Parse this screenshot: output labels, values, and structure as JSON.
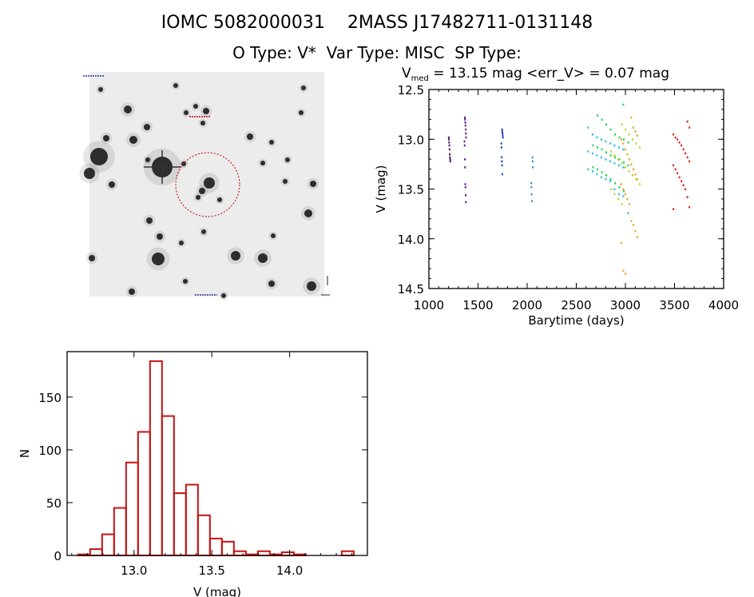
{
  "header": {
    "title_line1": "IOMC 5082000031    2MASS J17482711-0131148",
    "title_line2": "O Type: V*  Var Type: MISC  SP Type:"
  },
  "finder_chart": {
    "circle_color": "#cc0000"
  },
  "chart_data": [
    {
      "type": "scatter",
      "title_main": "V",
      "title_sub": "med",
      "title_rest": " = 13.15 mag <err_V> = 0.07 mag",
      "xlabel": "Barytime (days)",
      "ylabel": "V (mag)",
      "xlim": [
        1000,
        4000
      ],
      "ylim": [
        14.5,
        12.5
      ],
      "y_inverted": true,
      "xticks": [
        "1000",
        "1500",
        "2000",
        "2500",
        "3000",
        "3500",
        "4000"
      ],
      "yticks": [
        "12.5",
        "13.0",
        "13.5",
        "14.0",
        "14.5"
      ],
      "clusters": [
        {
          "x": 1210,
          "color": "#4a1060",
          "y": [
            12.98,
            13.0,
            13.03,
            13.06,
            13.1,
            13.15,
            13.18,
            13.2,
            13.22
          ]
        },
        {
          "x": 1370,
          "color": "#5a1a8a",
          "y": [
            12.78,
            12.8,
            12.83,
            12.86,
            12.9,
            12.94,
            12.98,
            13.02,
            13.06,
            13.2,
            13.28,
            13.45,
            13.48,
            13.56,
            13.63
          ]
        },
        {
          "x": 1745,
          "color": "#2040c0",
          "y": [
            12.9,
            12.92,
            12.94,
            12.96,
            12.98,
            13.04,
            13.08,
            13.18,
            13.22,
            13.26,
            13.35
          ]
        },
        {
          "x": 2050,
          "color": "#2a8fd0",
          "y": [
            13.18,
            13.22,
            13.28,
            13.44,
            13.48,
            13.55,
            13.62
          ]
        },
        {
          "x": 2800,
          "color": "#20b8e8",
          "spread": 22,
          "y": [
            12.65,
            12.88,
            12.95,
            12.98,
            13.0,
            13.02,
            13.04,
            13.06,
            13.08,
            13.1,
            13.12,
            13.14,
            13.16,
            13.18,
            13.2,
            13.22,
            13.24,
            13.26,
            13.28,
            13.3,
            13.32,
            13.35,
            13.38,
            13.4,
            13.42,
            13.5,
            13.55,
            13.57
          ]
        },
        {
          "x": 2850,
          "color": "#20d050",
          "spread": 22,
          "y": [
            12.76,
            12.8,
            12.85,
            12.9,
            12.95,
            12.98,
            13.0,
            13.03,
            13.06,
            13.08,
            13.1,
            13.13,
            13.16,
            13.18,
            13.2,
            13.23,
            13.26,
            13.28,
            13.3,
            13.33,
            13.36,
            13.4,
            13.44,
            13.48,
            13.52,
            13.74
          ]
        },
        {
          "x": 3000,
          "color": "#b0d820",
          "spread": 18,
          "y": [
            12.85,
            12.9,
            12.95,
            13.0,
            13.04,
            13.08,
            13.12,
            13.16,
            13.2,
            13.24,
            13.28,
            13.32,
            13.36,
            13.4,
            13.45,
            13.5,
            13.55,
            13.6,
            13.65
          ]
        },
        {
          "x": 3040,
          "color": "#f0a020",
          "spread": 10,
          "y": [
            12.78,
            12.88,
            12.92,
            12.96,
            13.0,
            13.04,
            13.1,
            13.15,
            13.2,
            13.25,
            13.3,
            13.35,
            13.4,
            13.45,
            13.5,
            13.55,
            13.6,
            13.65,
            13.82,
            13.86,
            13.92,
            13.98,
            14.04,
            14.32,
            14.35
          ]
        },
        {
          "x": 3570,
          "color": "#d02020",
          "spread": 10,
          "y": [
            12.82,
            12.88,
            12.95,
            12.98,
            13.0,
            13.03,
            13.06,
            13.1,
            13.14,
            13.18,
            13.22,
            13.26,
            13.3,
            13.34,
            13.38,
            13.42,
            13.46,
            13.5,
            13.58,
            13.68,
            13.7
          ]
        }
      ]
    },
    {
      "type": "bar",
      "subtype": "histogram",
      "xlabel": "V (mag)",
      "ylabel": "N",
      "xlim": [
        12.57,
        14.5
      ],
      "ylim": [
        0,
        193
      ],
      "xticks": [
        "13.0",
        "13.5",
        "14.0"
      ],
      "yticks": [
        "0",
        "50",
        "100",
        "150"
      ],
      "bar_color": "#cc1111",
      "bin_start": 12.641,
      "bin_width": 0.077,
      "values": [
        1,
        6,
        20,
        45,
        88,
        117,
        184,
        132,
        59,
        67,
        38,
        16,
        13,
        4,
        1,
        4,
        1,
        3,
        1,
        0,
        0,
        0,
        4
      ]
    }
  ]
}
